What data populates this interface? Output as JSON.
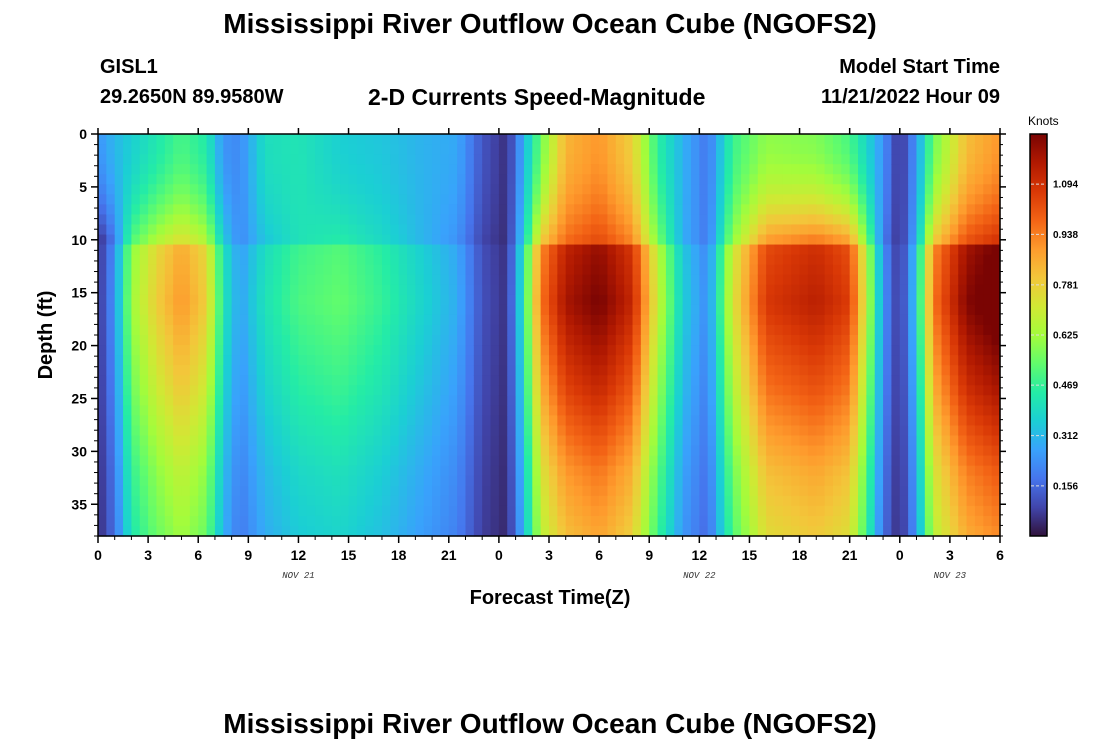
{
  "header": {
    "title": "Mississippi River Outflow Ocean Cube (NGOFS2)",
    "station": "GISL1",
    "coordinates": "29.2650N  89.9580W",
    "variable": "2-D Currents Speed-Magnitude",
    "model_start_label": "Model Start Time",
    "model_start_value": "11/21/2022 Hour 09"
  },
  "footer": {
    "title": "Mississippi River Outflow Ocean Cube (NGOFS2)"
  },
  "colors": {
    "colormap": [
      "#30123b",
      "#4145ab",
      "#4675ed",
      "#39a2fc",
      "#1bcfd4",
      "#24eca6",
      "#61fc6c",
      "#a4fc3b",
      "#d1e834",
      "#f3c63a",
      "#fe9b2d",
      "#f36315",
      "#d93806",
      "#b11901",
      "#7a0403"
    ],
    "axis": "#000000",
    "tick_dash": "#dddddd"
  },
  "chart_data": {
    "type": "heatmap",
    "title": "2-D Currents Speed-Magnitude",
    "xlabel": "Forecast Time(Z)",
    "ylabel": "Depth (ft)",
    "x_unit": "hours from 00Z Nov 21",
    "xlim": [
      0,
      54
    ],
    "ylim": [
      0,
      38
    ],
    "y_inverted": true,
    "x_ticks": [
      {
        "value": 0,
        "label": "0"
      },
      {
        "value": 3,
        "label": "3"
      },
      {
        "value": 6,
        "label": "6"
      },
      {
        "value": 9,
        "label": "9"
      },
      {
        "value": 12,
        "label": "12"
      },
      {
        "value": 15,
        "label": "15"
      },
      {
        "value": 18,
        "label": "18"
      },
      {
        "value": 21,
        "label": "21"
      },
      {
        "value": 24,
        "label": "0"
      },
      {
        "value": 27,
        "label": "3"
      },
      {
        "value": 30,
        "label": "6"
      },
      {
        "value": 33,
        "label": "9"
      },
      {
        "value": 36,
        "label": "12"
      },
      {
        "value": 39,
        "label": "15"
      },
      {
        "value": 42,
        "label": "18"
      },
      {
        "value": 45,
        "label": "21"
      },
      {
        "value": 48,
        "label": "0"
      },
      {
        "value": 51,
        "label": "3"
      },
      {
        "value": 54,
        "label": "6"
      }
    ],
    "date_labels": [
      {
        "value": 12,
        "label": "NOV 21"
      },
      {
        "value": 36,
        "label": "NOV 22"
      },
      {
        "value": 51,
        "label": "NOV 23"
      }
    ],
    "y_ticks": [
      0,
      5,
      10,
      15,
      20,
      25,
      30,
      35
    ],
    "colorbar": {
      "label": "Knots",
      "min": 0,
      "max": 1.25,
      "ticks": [
        0.156,
        0.312,
        0.469,
        0.625,
        0.781,
        0.938,
        1.094
      ]
    },
    "time_profile": [
      {
        "t": 0,
        "surface": 0.24,
        "deep": 0.05
      },
      {
        "t": 1,
        "surface": 0.31,
        "deep": 0.22
      },
      {
        "t": 2,
        "surface": 0.36,
        "deep": 0.55
      },
      {
        "t": 3.5,
        "surface": 0.43,
        "deep": 0.7
      },
      {
        "t": 5,
        "surface": 0.5,
        "deep": 0.8
      },
      {
        "t": 6.5,
        "surface": 0.44,
        "deep": 0.7
      },
      {
        "t": 7.5,
        "surface": 0.24,
        "deep": 0.38
      },
      {
        "t": 8.5,
        "surface": 0.22,
        "deep": 0.24
      },
      {
        "t": 10,
        "surface": 0.4,
        "deep": 0.37
      },
      {
        "t": 12,
        "surface": 0.42,
        "deep": 0.45
      },
      {
        "t": 14.5,
        "surface": 0.36,
        "deep": 0.48
      },
      {
        "t": 17,
        "surface": 0.34,
        "deep": 0.42
      },
      {
        "t": 19.5,
        "surface": 0.3,
        "deep": 0.33
      },
      {
        "t": 21.5,
        "surface": 0.28,
        "deep": 0.26
      },
      {
        "t": 23,
        "surface": 0.12,
        "deep": 0.1
      },
      {
        "t": 24.5,
        "surface": 0.05,
        "deep": 0.05
      },
      {
        "t": 25.5,
        "surface": 0.3,
        "deep": 0.4
      },
      {
        "t": 26.5,
        "surface": 0.55,
        "deep": 0.85
      },
      {
        "t": 28,
        "surface": 0.84,
        "deep": 1.05
      },
      {
        "t": 30,
        "surface": 0.9,
        "deep": 1.12
      },
      {
        "t": 32,
        "surface": 0.78,
        "deep": 1.0
      },
      {
        "t": 33.5,
        "surface": 0.46,
        "deep": 0.62
      },
      {
        "t": 35,
        "surface": 0.3,
        "deep": 0.32
      },
      {
        "t": 36.5,
        "surface": 0.18,
        "deep": 0.2
      },
      {
        "t": 38,
        "surface": 0.48,
        "deep": 0.65
      },
      {
        "t": 40,
        "surface": 0.6,
        "deep": 0.96
      },
      {
        "t": 43,
        "surface": 0.58,
        "deep": 1.02
      },
      {
        "t": 45,
        "surface": 0.5,
        "deep": 0.95
      },
      {
        "t": 46,
        "surface": 0.38,
        "deep": 0.62
      },
      {
        "t": 47,
        "surface": 0.24,
        "deep": 0.22
      },
      {
        "t": 48,
        "surface": 0.05,
        "deep": 0.05
      },
      {
        "t": 49,
        "surface": 0.25,
        "deep": 0.32
      },
      {
        "t": 50,
        "surface": 0.55,
        "deep": 0.85
      },
      {
        "t": 52,
        "surface": 0.82,
        "deep": 1.1
      },
      {
        "t": 54,
        "surface": 0.9,
        "deep": 1.18
      }
    ],
    "depth_profile": [
      {
        "d": 0,
        "f": 1.0
      },
      {
        "d": 5,
        "f": 0.9
      },
      {
        "d": 8,
        "f": 0.95
      },
      {
        "d": 11,
        "f": 1.08
      },
      {
        "d": 16,
        "f": 1.12
      },
      {
        "d": 24,
        "f": 1.0
      },
      {
        "d": 32,
        "f": 0.85
      },
      {
        "d": 38,
        "f": 0.78
      }
    ]
  }
}
